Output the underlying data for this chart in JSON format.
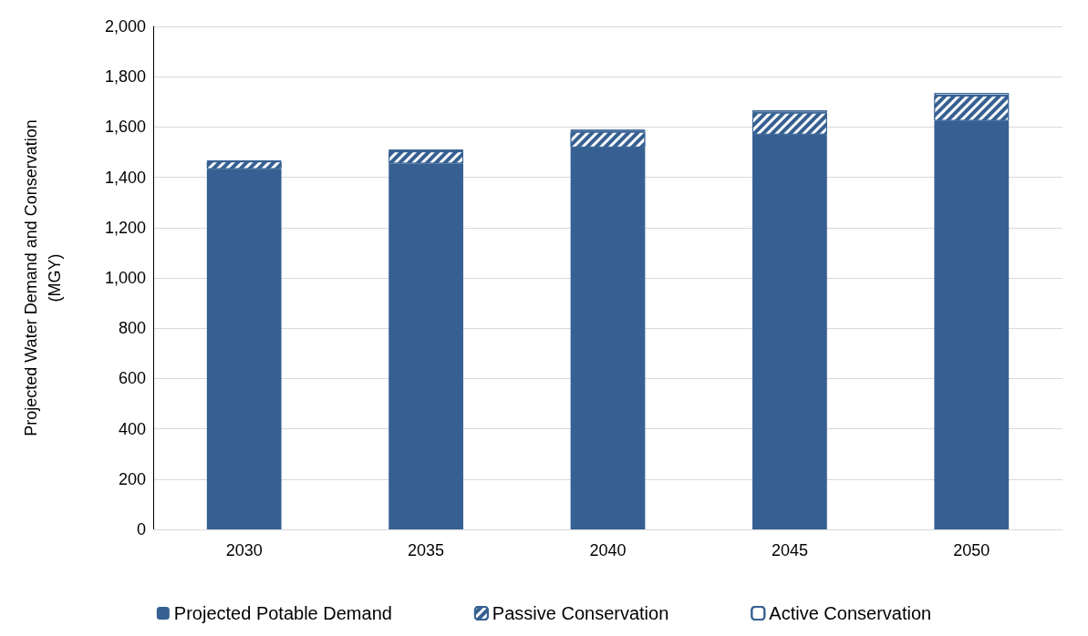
{
  "chart_data": {
    "type": "bar",
    "stacked": true,
    "ylabel": "Projected Water Demand and Conservation\n(MGY)",
    "categories": [
      "2030",
      "2035",
      "2040",
      "2045",
      "2050"
    ],
    "series": [
      {
        "name": "Projected Potable Demand",
        "color": "#366092",
        "values": [
          1433,
          1455,
          1519,
          1570,
          1625
        ]
      },
      {
        "name": "Passive Conservation",
        "color": "#366092",
        "values": [
          30,
          48,
          62,
          87,
          100
        ]
      },
      {
        "name": "Active Conservation",
        "color": "#366092",
        "values": [
          4,
          7,
          8,
          9,
          10
        ]
      }
    ],
    "ylim": [
      0,
      2000
    ],
    "yticks": [
      0,
      200,
      400,
      600,
      800,
      {
        "value": 1000,
        "label": "1,000"
      },
      {
        "value": 1200,
        "label": "1,200"
      },
      {
        "value": 1400,
        "label": "1,400"
      },
      {
        "value": 1600,
        "label": "1,600"
      },
      {
        "value": 1800,
        "label": "1,800"
      },
      {
        "value": 2000,
        "label": "2,000"
      }
    ],
    "grid": "y",
    "legend": "bottom"
  }
}
